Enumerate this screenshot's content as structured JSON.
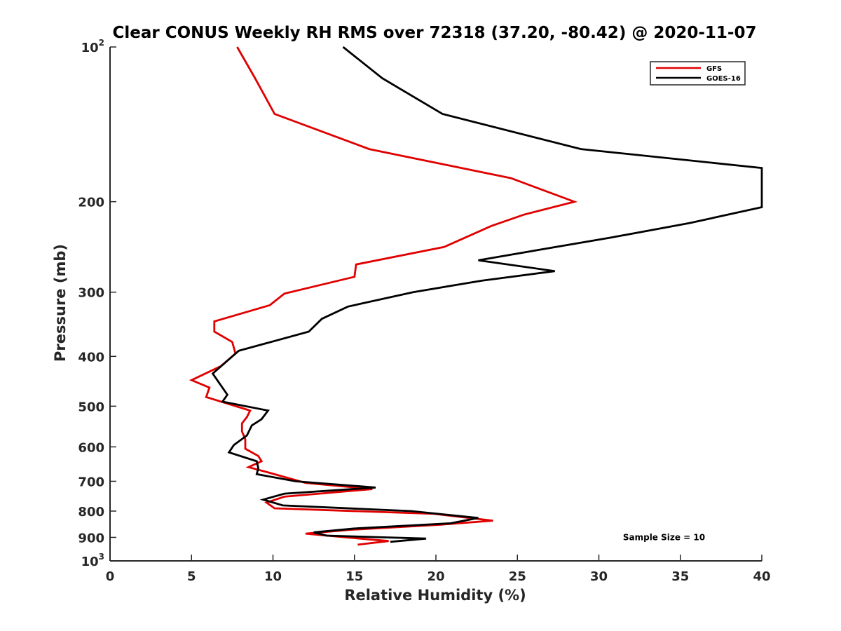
{
  "chart_data": {
    "type": "line",
    "title": "Clear CONUS Weekly RH RMS over 72318 (37.20, -80.42) @ 2020-11-07",
    "xlabel": "Relative Humidity (%)",
    "ylabel": "Pressure (mb)",
    "xlim": [
      0,
      40
    ],
    "ylim": [
      100,
      1000
    ],
    "y_scale": "log",
    "y_reversed": true,
    "x_ticks": [
      "0",
      "5",
      "10",
      "15",
      "20",
      "25",
      "30",
      "35",
      "40"
    ],
    "y_ticks": [
      {
        "value": 100,
        "base": "10",
        "exp": "2"
      },
      {
        "value": 200,
        "label": "200"
      },
      {
        "value": 300,
        "label": "300"
      },
      {
        "value": 400,
        "label": "400"
      },
      {
        "value": 500,
        "label": "500"
      },
      {
        "value": 600,
        "label": "600"
      },
      {
        "value": 700,
        "label": "700"
      },
      {
        "value": 800,
        "label": "800"
      },
      {
        "value": 900,
        "label": "900"
      },
      {
        "value": 1000,
        "base": "10",
        "exp": "3"
      }
    ],
    "legend_position": "top-right",
    "grid": false,
    "series": [
      {
        "name": "GFS",
        "color": "#e00000",
        "points": [
          [
            7.8,
            100
          ],
          [
            8.9,
            115
          ],
          [
            10.1,
            135
          ],
          [
            15.9,
            158
          ],
          [
            24.6,
            180
          ],
          [
            28.5,
            200
          ],
          [
            25.4,
            212
          ],
          [
            23.4,
            223
          ],
          [
            20.5,
            245
          ],
          [
            15.1,
            265
          ],
          [
            15.0,
            280
          ],
          [
            10.7,
            302
          ],
          [
            9.8,
            318
          ],
          [
            6.4,
            342
          ],
          [
            6.4,
            358
          ],
          [
            7.5,
            375
          ],
          [
            7.7,
            395
          ],
          [
            6.8,
            418
          ],
          [
            5.0,
            445
          ],
          [
            6.1,
            460
          ],
          [
            5.9,
            480
          ],
          [
            8.6,
            510
          ],
          [
            8.4,
            525
          ],
          [
            8.1,
            540
          ],
          [
            8.1,
            560
          ],
          [
            8.3,
            580
          ],
          [
            8.3,
            605
          ],
          [
            9.1,
            625
          ],
          [
            9.3,
            640
          ],
          [
            8.5,
            657
          ],
          [
            9.5,
            670
          ],
          [
            12.0,
            705
          ],
          [
            16.1,
            725
          ],
          [
            10.7,
            750
          ],
          [
            9.6,
            770
          ],
          [
            10.1,
            790
          ],
          [
            19.9,
            810
          ],
          [
            23.5,
            835
          ],
          [
            20.3,
            850
          ],
          [
            14.7,
            870
          ],
          [
            12.0,
            885
          ],
          [
            14.5,
            900
          ],
          [
            17.1,
            915
          ],
          [
            15.2,
            930
          ]
        ]
      },
      {
        "name": "GOES-16",
        "color": "#000000",
        "points": [
          [
            14.3,
            100
          ],
          [
            16.7,
            115
          ],
          [
            20.4,
            135
          ],
          [
            28.9,
            158
          ],
          [
            40.0,
            172
          ],
          [
            40.0,
            205
          ],
          [
            35.6,
            220
          ],
          [
            30.7,
            235
          ],
          [
            22.6,
            260
          ],
          [
            27.3,
            273
          ],
          [
            22.8,
            285
          ],
          [
            18.6,
            300
          ],
          [
            14.6,
            320
          ],
          [
            13.0,
            338
          ],
          [
            12.2,
            358
          ],
          [
            7.9,
            390
          ],
          [
            6.3,
            432
          ],
          [
            7.2,
            475
          ],
          [
            6.9,
            490
          ],
          [
            9.7,
            510
          ],
          [
            9.3,
            530
          ],
          [
            8.7,
            545
          ],
          [
            8.4,
            570
          ],
          [
            7.6,
            595
          ],
          [
            7.3,
            615
          ],
          [
            9.0,
            640
          ],
          [
            9.1,
            660
          ],
          [
            9.0,
            678
          ],
          [
            11.4,
            700
          ],
          [
            16.3,
            720
          ],
          [
            10.7,
            740
          ],
          [
            9.4,
            760
          ],
          [
            10.6,
            780
          ],
          [
            18.5,
            800
          ],
          [
            22.6,
            825
          ],
          [
            20.9,
            845
          ],
          [
            15.0,
            865
          ],
          [
            12.5,
            880
          ],
          [
            13.3,
            893
          ],
          [
            19.4,
            905
          ],
          [
            17.2,
            918
          ]
        ]
      }
    ],
    "annotations": [
      {
        "text": "Sample Size = 10",
        "x": 34.0,
        "y": 900
      }
    ]
  }
}
